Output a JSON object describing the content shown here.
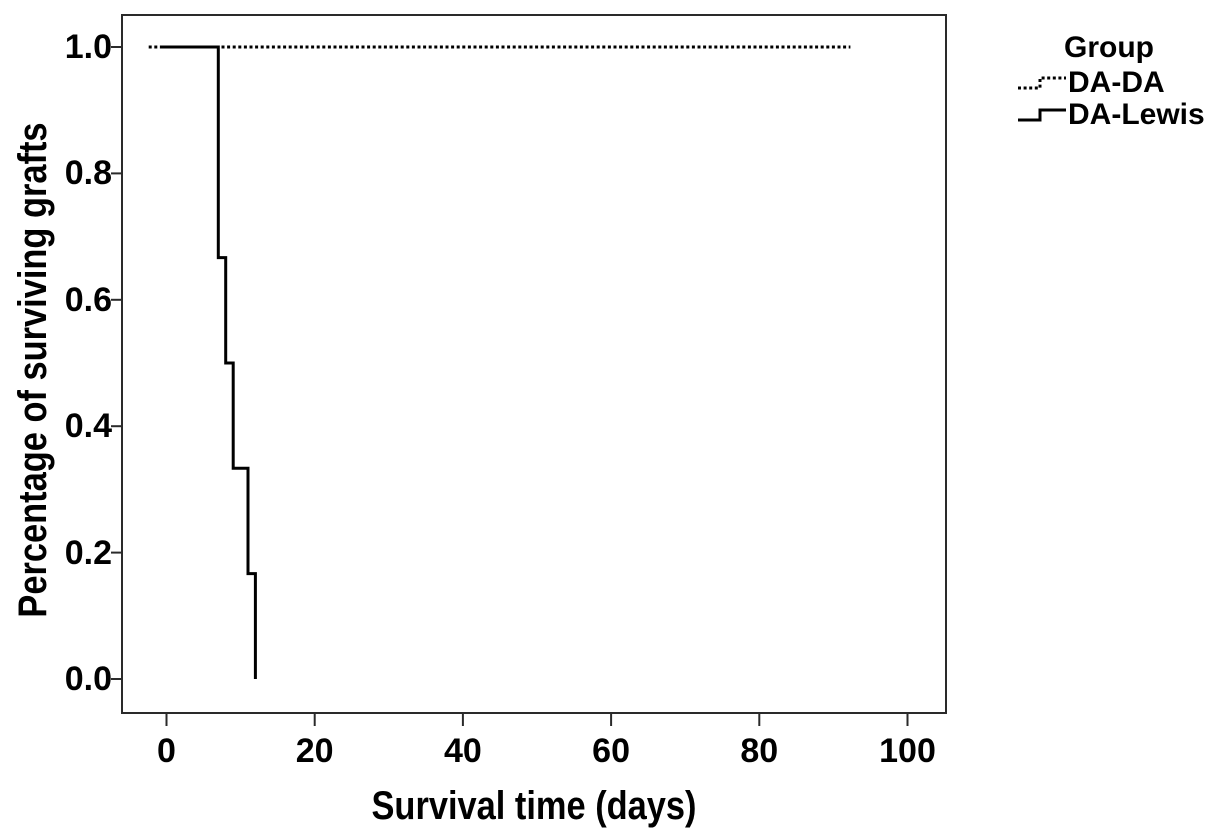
{
  "figure": {
    "background": "#ffffff",
    "line_color": "#000000",
    "frame_color": "#2a2a2a",
    "text_color": "#000000"
  },
  "chart_data": {
    "type": "line",
    "subtype": "kaplan-meier-step-survival",
    "title": "",
    "xlabel": "Survival time (days)",
    "ylabel": "Percentage of surviving grafts",
    "xlim": [
      -6.0,
      105.2
    ],
    "ylim": [
      -0.0538,
      1.0506
    ],
    "x_ticks": [
      0,
      20,
      40,
      60,
      80,
      100
    ],
    "x_tick_labels": [
      "0",
      "20",
      "40",
      "60",
      "80",
      "100"
    ],
    "y_ticks": [
      0.0,
      0.2,
      0.4,
      0.6,
      0.8,
      1.0
    ],
    "y_tick_labels": [
      "0.0",
      "0.2",
      "0.4",
      "0.6",
      "0.8",
      "1.0"
    ],
    "grid": false,
    "legend": {
      "title": "Group",
      "position": "top-right-outside"
    },
    "series": [
      {
        "name": "DA-DA",
        "style": "dotted",
        "color": "#000000",
        "points": [
          [
            -2.4,
            1.0
          ],
          [
            92.3,
            1.0
          ]
        ]
      },
      {
        "name": "DA-Lewis",
        "style": "solid",
        "color": "#000000",
        "points": [
          [
            -0.6,
            1.0
          ],
          [
            7,
            1.0
          ],
          [
            7,
            0.6667
          ],
          [
            8,
            0.6667
          ],
          [
            8,
            0.5
          ],
          [
            9,
            0.5
          ],
          [
            9,
            0.3333
          ],
          [
            11,
            0.3333
          ],
          [
            11,
            0.1667
          ],
          [
            12,
            0.1667
          ],
          [
            12,
            0.0
          ]
        ]
      }
    ]
  }
}
